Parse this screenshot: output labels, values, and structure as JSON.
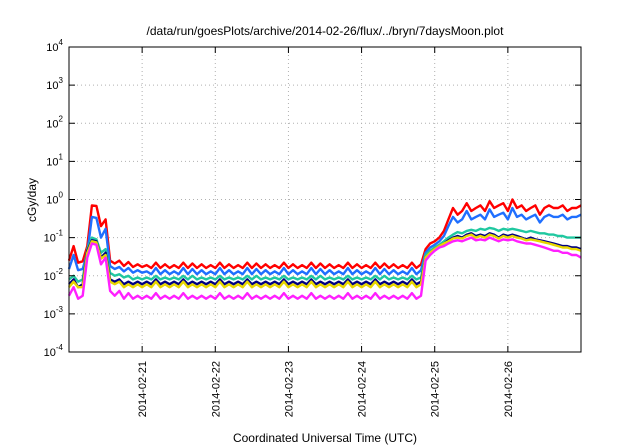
{
  "chart_data": {
    "type": "line",
    "title": "/data/run/goesPlots/archive/2014-02-26/flux/../bryn/7daysMoon.plot",
    "xlabel": "Coordinated Universal Time (UTC)",
    "ylabel": "cGy/day",
    "y_scale": "log",
    "ylim": [
      0.0001,
      10000
    ],
    "y_ticks": [
      {
        "value": 0.0001,
        "base": "10",
        "exp": "-4"
      },
      {
        "value": 0.001,
        "base": "10",
        "exp": "-3"
      },
      {
        "value": 0.01,
        "base": "10",
        "exp": "-2"
      },
      {
        "value": 0.1,
        "base": "10",
        "exp": "-1"
      },
      {
        "value": 1,
        "base": "10",
        "exp": "0"
      },
      {
        "value": 10,
        "base": "10",
        "exp": "1"
      },
      {
        "value": 100,
        "base": "10",
        "exp": "2"
      },
      {
        "value": 1000,
        "base": "10",
        "exp": "3"
      },
      {
        "value": 10000,
        "base": "10",
        "exp": "4"
      }
    ],
    "xlim": [
      "2014-02-20T00:00",
      "2014-02-27T00:00"
    ],
    "x_ticks": [
      "2014-02-21",
      "2014-02-22",
      "2014-02-23",
      "2014-02-24",
      "2014-02-25",
      "2014-02-26"
    ],
    "grid": true,
    "x_step_hours": 1.5,
    "series": [
      {
        "color": "#ff0000",
        "values": [
          0.025,
          0.06,
          0.022,
          0.024,
          0.06,
          0.7,
          0.68,
          0.2,
          0.3,
          0.025,
          0.021,
          0.025,
          0.018,
          0.023,
          0.017,
          0.02,
          0.017,
          0.019,
          0.016,
          0.022,
          0.016,
          0.02,
          0.016,
          0.019,
          0.016,
          0.022,
          0.016,
          0.021,
          0.016,
          0.02,
          0.016,
          0.019,
          0.016,
          0.022,
          0.016,
          0.02,
          0.016,
          0.019,
          0.016,
          0.022,
          0.016,
          0.021,
          0.016,
          0.02,
          0.016,
          0.019,
          0.016,
          0.022,
          0.016,
          0.02,
          0.016,
          0.019,
          0.016,
          0.022,
          0.016,
          0.021,
          0.016,
          0.02,
          0.016,
          0.019,
          0.016,
          0.022,
          0.016,
          0.02,
          0.016,
          0.019,
          0.016,
          0.022,
          0.016,
          0.021,
          0.016,
          0.02,
          0.016,
          0.019,
          0.016,
          0.022,
          0.016,
          0.02,
          0.05,
          0.07,
          0.08,
          0.1,
          0.15,
          0.3,
          0.6,
          0.4,
          0.5,
          0.8,
          0.5,
          0.6,
          0.7,
          0.5,
          0.9,
          0.6,
          0.7,
          0.8,
          0.5,
          1.0,
          0.6,
          0.7,
          0.5,
          0.6,
          0.7,
          0.4,
          0.6,
          0.7,
          0.6,
          0.6,
          0.7,
          0.5,
          0.6,
          0.6,
          0.7
        ]
      },
      {
        "color": "#1f6fff",
        "values": [
          0.015,
          0.035,
          0.014,
          0.015,
          0.04,
          0.35,
          0.33,
          0.1,
          0.17,
          0.018,
          0.015,
          0.017,
          0.013,
          0.016,
          0.012,
          0.014,
          0.012,
          0.013,
          0.011,
          0.016,
          0.011,
          0.014,
          0.011,
          0.013,
          0.011,
          0.016,
          0.011,
          0.015,
          0.011,
          0.014,
          0.011,
          0.013,
          0.011,
          0.016,
          0.011,
          0.014,
          0.011,
          0.013,
          0.011,
          0.016,
          0.011,
          0.015,
          0.011,
          0.014,
          0.011,
          0.013,
          0.011,
          0.016,
          0.011,
          0.014,
          0.011,
          0.013,
          0.011,
          0.016,
          0.011,
          0.015,
          0.011,
          0.014,
          0.011,
          0.013,
          0.011,
          0.016,
          0.011,
          0.014,
          0.011,
          0.013,
          0.011,
          0.016,
          0.011,
          0.015,
          0.011,
          0.014,
          0.011,
          0.013,
          0.011,
          0.016,
          0.011,
          0.014,
          0.04,
          0.055,
          0.065,
          0.08,
          0.11,
          0.2,
          0.35,
          0.25,
          0.3,
          0.5,
          0.3,
          0.35,
          0.4,
          0.3,
          0.55,
          0.35,
          0.4,
          0.45,
          0.3,
          0.6,
          0.35,
          0.4,
          0.3,
          0.35,
          0.4,
          0.25,
          0.35,
          0.4,
          0.35,
          0.35,
          0.4,
          0.3,
          0.35,
          0.35,
          0.4
        ]
      },
      {
        "color": "#20c8a0",
        "values": [
          0.008,
          0.01,
          0.007,
          0.008,
          0.05,
          0.1,
          0.09,
          0.04,
          0.05,
          0.012,
          0.01,
          0.011,
          0.009,
          0.01,
          0.008,
          0.009,
          0.008,
          0.009,
          0.008,
          0.01,
          0.008,
          0.009,
          0.008,
          0.009,
          0.008,
          0.01,
          0.008,
          0.01,
          0.008,
          0.009,
          0.008,
          0.009,
          0.008,
          0.01,
          0.008,
          0.009,
          0.008,
          0.009,
          0.008,
          0.01,
          0.008,
          0.01,
          0.008,
          0.009,
          0.008,
          0.009,
          0.008,
          0.01,
          0.008,
          0.009,
          0.008,
          0.009,
          0.008,
          0.01,
          0.008,
          0.01,
          0.008,
          0.009,
          0.008,
          0.009,
          0.008,
          0.01,
          0.008,
          0.009,
          0.008,
          0.009,
          0.008,
          0.01,
          0.008,
          0.01,
          0.008,
          0.009,
          0.008,
          0.009,
          0.008,
          0.01,
          0.008,
          0.009,
          0.035,
          0.045,
          0.055,
          0.065,
          0.08,
          0.1,
          0.12,
          0.14,
          0.13,
          0.15,
          0.16,
          0.15,
          0.17,
          0.16,
          0.18,
          0.17,
          0.15,
          0.17,
          0.16,
          0.17,
          0.16,
          0.15,
          0.14,
          0.15,
          0.14,
          0.13,
          0.13,
          0.12,
          0.12,
          0.11,
          0.11,
          0.1,
          0.1,
          0.1,
          0.1
        ]
      },
      {
        "color": "#000080",
        "values": [
          0.006,
          0.008,
          0.005,
          0.006,
          0.045,
          0.085,
          0.08,
          0.03,
          0.04,
          0.008,
          0.007,
          0.008,
          0.006,
          0.007,
          0.006,
          0.007,
          0.006,
          0.007,
          0.006,
          0.008,
          0.006,
          0.007,
          0.006,
          0.007,
          0.006,
          0.008,
          0.006,
          0.007,
          0.006,
          0.007,
          0.006,
          0.007,
          0.006,
          0.008,
          0.006,
          0.007,
          0.006,
          0.007,
          0.006,
          0.008,
          0.006,
          0.007,
          0.006,
          0.007,
          0.006,
          0.007,
          0.006,
          0.008,
          0.006,
          0.007,
          0.006,
          0.007,
          0.006,
          0.008,
          0.006,
          0.007,
          0.006,
          0.007,
          0.006,
          0.007,
          0.006,
          0.008,
          0.006,
          0.007,
          0.006,
          0.007,
          0.006,
          0.008,
          0.006,
          0.007,
          0.006,
          0.007,
          0.006,
          0.007,
          0.006,
          0.008,
          0.006,
          0.007,
          0.03,
          0.04,
          0.05,
          0.06,
          0.07,
          0.085,
          0.1,
          0.11,
          0.1,
          0.12,
          0.13,
          0.11,
          0.12,
          0.11,
          0.13,
          0.12,
          0.1,
          0.12,
          0.11,
          0.12,
          0.11,
          0.1,
          0.09,
          0.1,
          0.09,
          0.085,
          0.08,
          0.075,
          0.07,
          0.065,
          0.06,
          0.06,
          0.055,
          0.055,
          0.05
        ]
      },
      {
        "color": "#e8d800",
        "values": [
          0.005,
          0.007,
          0.005,
          0.005,
          0.04,
          0.08,
          0.075,
          0.028,
          0.035,
          0.007,
          0.006,
          0.007,
          0.005,
          0.006,
          0.005,
          0.006,
          0.005,
          0.006,
          0.005,
          0.007,
          0.005,
          0.006,
          0.005,
          0.006,
          0.005,
          0.007,
          0.005,
          0.006,
          0.005,
          0.006,
          0.005,
          0.006,
          0.005,
          0.007,
          0.005,
          0.006,
          0.005,
          0.006,
          0.005,
          0.007,
          0.005,
          0.006,
          0.005,
          0.006,
          0.005,
          0.006,
          0.005,
          0.007,
          0.005,
          0.006,
          0.005,
          0.006,
          0.005,
          0.007,
          0.005,
          0.006,
          0.005,
          0.006,
          0.005,
          0.006,
          0.005,
          0.007,
          0.005,
          0.006,
          0.005,
          0.006,
          0.005,
          0.007,
          0.005,
          0.006,
          0.005,
          0.006,
          0.005,
          0.006,
          0.005,
          0.007,
          0.005,
          0.006,
          0.03,
          0.04,
          0.05,
          0.06,
          0.07,
          0.08,
          0.095,
          0.1,
          0.095,
          0.11,
          0.12,
          0.1,
          0.11,
          0.1,
          0.12,
          0.11,
          0.095,
          0.11,
          0.1,
          0.11,
          0.1,
          0.095,
          0.085,
          0.09,
          0.085,
          0.08,
          0.075,
          0.07,
          0.065,
          0.06,
          0.055,
          0.055,
          0.05,
          0.05,
          0.045
        ]
      },
      {
        "color": "#ff20ff",
        "values": [
          0.003,
          0.005,
          0.0025,
          0.003,
          0.03,
          0.07,
          0.065,
          0.02,
          0.03,
          0.004,
          0.003,
          0.004,
          0.0025,
          0.0035,
          0.0025,
          0.003,
          0.0025,
          0.003,
          0.0025,
          0.0035,
          0.0025,
          0.003,
          0.0025,
          0.003,
          0.0025,
          0.0035,
          0.0025,
          0.003,
          0.0025,
          0.003,
          0.0025,
          0.003,
          0.0025,
          0.0035,
          0.0025,
          0.003,
          0.0025,
          0.003,
          0.0025,
          0.0035,
          0.0025,
          0.003,
          0.0025,
          0.003,
          0.0025,
          0.003,
          0.0025,
          0.0035,
          0.0025,
          0.003,
          0.0025,
          0.003,
          0.0025,
          0.0035,
          0.0025,
          0.003,
          0.0025,
          0.003,
          0.0025,
          0.003,
          0.0025,
          0.0035,
          0.0025,
          0.003,
          0.0025,
          0.003,
          0.0025,
          0.0035,
          0.0025,
          0.003,
          0.0025,
          0.003,
          0.0025,
          0.003,
          0.0025,
          0.0035,
          0.0025,
          0.003,
          0.025,
          0.035,
          0.045,
          0.055,
          0.06,
          0.07,
          0.08,
          0.085,
          0.08,
          0.09,
          0.1,
          0.085,
          0.09,
          0.085,
          0.1,
          0.09,
          0.08,
          0.09,
          0.085,
          0.09,
          0.08,
          0.075,
          0.07,
          0.07,
          0.065,
          0.06,
          0.055,
          0.05,
          0.045,
          0.045,
          0.04,
          0.04,
          0.035,
          0.035,
          0.03
        ]
      }
    ]
  }
}
